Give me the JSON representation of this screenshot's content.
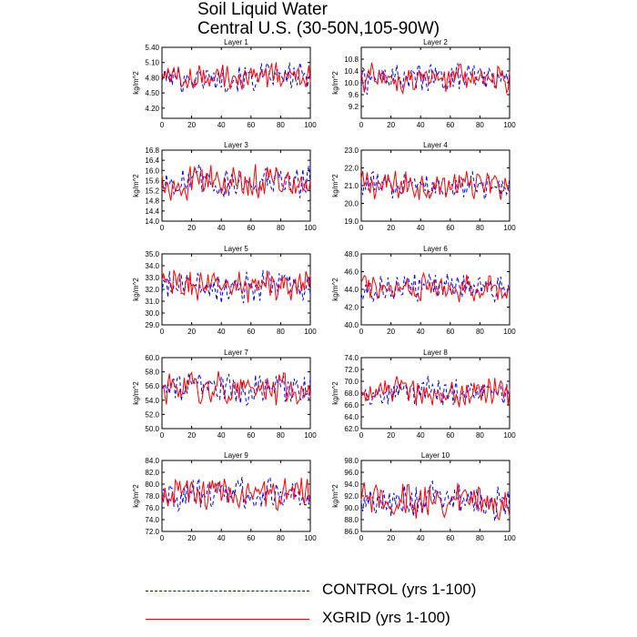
{
  "title": {
    "line1": "Soil Liquid Water",
    "line2": "Central U.S. (30-50N,105-90W)"
  },
  "legend": {
    "control": {
      "label": "CONTROL (yrs 1-100)",
      "color": "#0000ff",
      "style": "dashed"
    },
    "xgrid": {
      "label": "XGRID (yrs 1-100)",
      "color": "#ff0000",
      "style": "solid"
    }
  },
  "chart_data": [
    {
      "type": "line",
      "title": "Layer 1",
      "ylabel": "kg/m^2",
      "xlim": [
        0,
        100
      ],
      "ylim": [
        4.0,
        5.4
      ],
      "yticks": [
        "4.20",
        "4.50",
        "4.80",
        "5.10",
        "5.40"
      ],
      "xticks": [
        "0",
        "20",
        "40",
        "60",
        "80",
        "100"
      ],
      "mean": 4.8,
      "amp": 0.18,
      "series": [
        {
          "values_ref": "control"
        },
        {
          "values_ref": "xgrid"
        }
      ]
    },
    {
      "type": "line",
      "title": "Layer 2",
      "ylabel": "kg/m^2",
      "xlim": [
        0,
        100
      ],
      "ylim": [
        8.8,
        11.2
      ],
      "yticks": [
        "9.2",
        "9.6",
        "10.0",
        "10.4",
        "10.8"
      ],
      "xticks": [
        "0",
        "20",
        "40",
        "60",
        "80",
        "100"
      ],
      "mean": 10.15,
      "amp": 0.32,
      "series": [
        {
          "values_ref": "control"
        },
        {
          "values_ref": "xgrid"
        }
      ]
    },
    {
      "type": "line",
      "title": "Layer 3",
      "ylabel": "kg/m^2",
      "xlim": [
        0,
        100
      ],
      "ylim": [
        14.0,
        16.8
      ],
      "yticks": [
        "14.0",
        "14.4",
        "14.8",
        "15.2",
        "15.6",
        "16.0",
        "16.4",
        "16.8"
      ],
      "xticks": [
        "0",
        "20",
        "40",
        "60",
        "80",
        "100"
      ],
      "mean": 15.55,
      "amp": 0.42,
      "series": [
        {
          "values_ref": "control"
        },
        {
          "values_ref": "xgrid"
        }
      ]
    },
    {
      "type": "line",
      "title": "Layer 4",
      "ylabel": "kg/m^2",
      "xlim": [
        0,
        100
      ],
      "ylim": [
        19.0,
        23.0
      ],
      "yticks": [
        "19.0",
        "20.0",
        "21.0",
        "22.0",
        "23.0"
      ],
      "xticks": [
        "0",
        "20",
        "40",
        "60",
        "80",
        "100"
      ],
      "mean": 21.0,
      "amp": 0.55,
      "series": [
        {
          "values_ref": "control"
        },
        {
          "values_ref": "xgrid"
        }
      ]
    },
    {
      "type": "line",
      "title": "Layer 5",
      "ylabel": "kg/m^2",
      "xlim": [
        0,
        100
      ],
      "ylim": [
        29.0,
        35.0
      ],
      "yticks": [
        "29.0",
        "30.0",
        "31.0",
        "32.0",
        "33.0",
        "34.0",
        "35.0"
      ],
      "xticks": [
        "0",
        "20",
        "40",
        "60",
        "80",
        "100"
      ],
      "mean": 32.3,
      "amp": 0.9,
      "series": [
        {
          "values_ref": "control"
        },
        {
          "values_ref": "xgrid"
        }
      ]
    },
    {
      "type": "line",
      "title": "Layer 6",
      "ylabel": "kg/m^2",
      "xlim": [
        0,
        100
      ],
      "ylim": [
        40.0,
        48.0
      ],
      "yticks": [
        "40.0",
        "42.0",
        "44.0",
        "46.0",
        "48.0"
      ],
      "xticks": [
        "0",
        "20",
        "40",
        "60",
        "80",
        "100"
      ],
      "mean": 44.3,
      "amp": 1.1,
      "series": [
        {
          "values_ref": "control"
        },
        {
          "values_ref": "xgrid"
        }
      ]
    },
    {
      "type": "line",
      "title": "Layer 7",
      "ylabel": "kg/m^2",
      "xlim": [
        0,
        100
      ],
      "ylim": [
        50.0,
        60.0
      ],
      "yticks": [
        "50.0",
        "52.0",
        "54.0",
        "56.0",
        "58.0",
        "60.0"
      ],
      "xticks": [
        "0",
        "20",
        "40",
        "60",
        "80",
        "100"
      ],
      "mean": 55.6,
      "amp": 1.5,
      "series": [
        {
          "values_ref": "control"
        },
        {
          "values_ref": "xgrid"
        }
      ]
    },
    {
      "type": "line",
      "title": "Layer 8",
      "ylabel": "kg/m^2",
      "xlim": [
        0,
        100
      ],
      "ylim": [
        62.0,
        74.0
      ],
      "yticks": [
        "62.0",
        "64.0",
        "66.0",
        "68.0",
        "70.0",
        "72.0",
        "74.0"
      ],
      "xticks": [
        "0",
        "20",
        "40",
        "60",
        "80",
        "100"
      ],
      "mean": 68.2,
      "amp": 1.6,
      "series": [
        {
          "values_ref": "control"
        },
        {
          "values_ref": "xgrid"
        }
      ]
    },
    {
      "type": "line",
      "title": "Layer 9",
      "ylabel": "kg/m^2",
      "xlim": [
        0,
        100
      ],
      "ylim": [
        72.0,
        84.0
      ],
      "yticks": [
        "72.0",
        "74.0",
        "76.0",
        "78.0",
        "80.0",
        "82.0",
        "84.0"
      ],
      "xticks": [
        "0",
        "20",
        "40",
        "60",
        "80",
        "100"
      ],
      "mean": 78.4,
      "amp": 1.8,
      "series": [
        {
          "values_ref": "control"
        },
        {
          "values_ref": "xgrid"
        }
      ]
    },
    {
      "type": "line",
      "title": "Layer 10",
      "ylabel": "kg/m^2",
      "xlim": [
        0,
        100
      ],
      "ylim": [
        86.0,
        98.0
      ],
      "yticks": [
        "86.0",
        "88.0",
        "90.0",
        "92.0",
        "94.0",
        "96.0",
        "98.0"
      ],
      "xticks": [
        "0",
        "20",
        "40",
        "60",
        "80",
        "100"
      ],
      "mean": 91.2,
      "amp": 2.0,
      "series": [
        {
          "values_ref": "control"
        },
        {
          "values_ref": "xgrid"
        }
      ]
    }
  ]
}
